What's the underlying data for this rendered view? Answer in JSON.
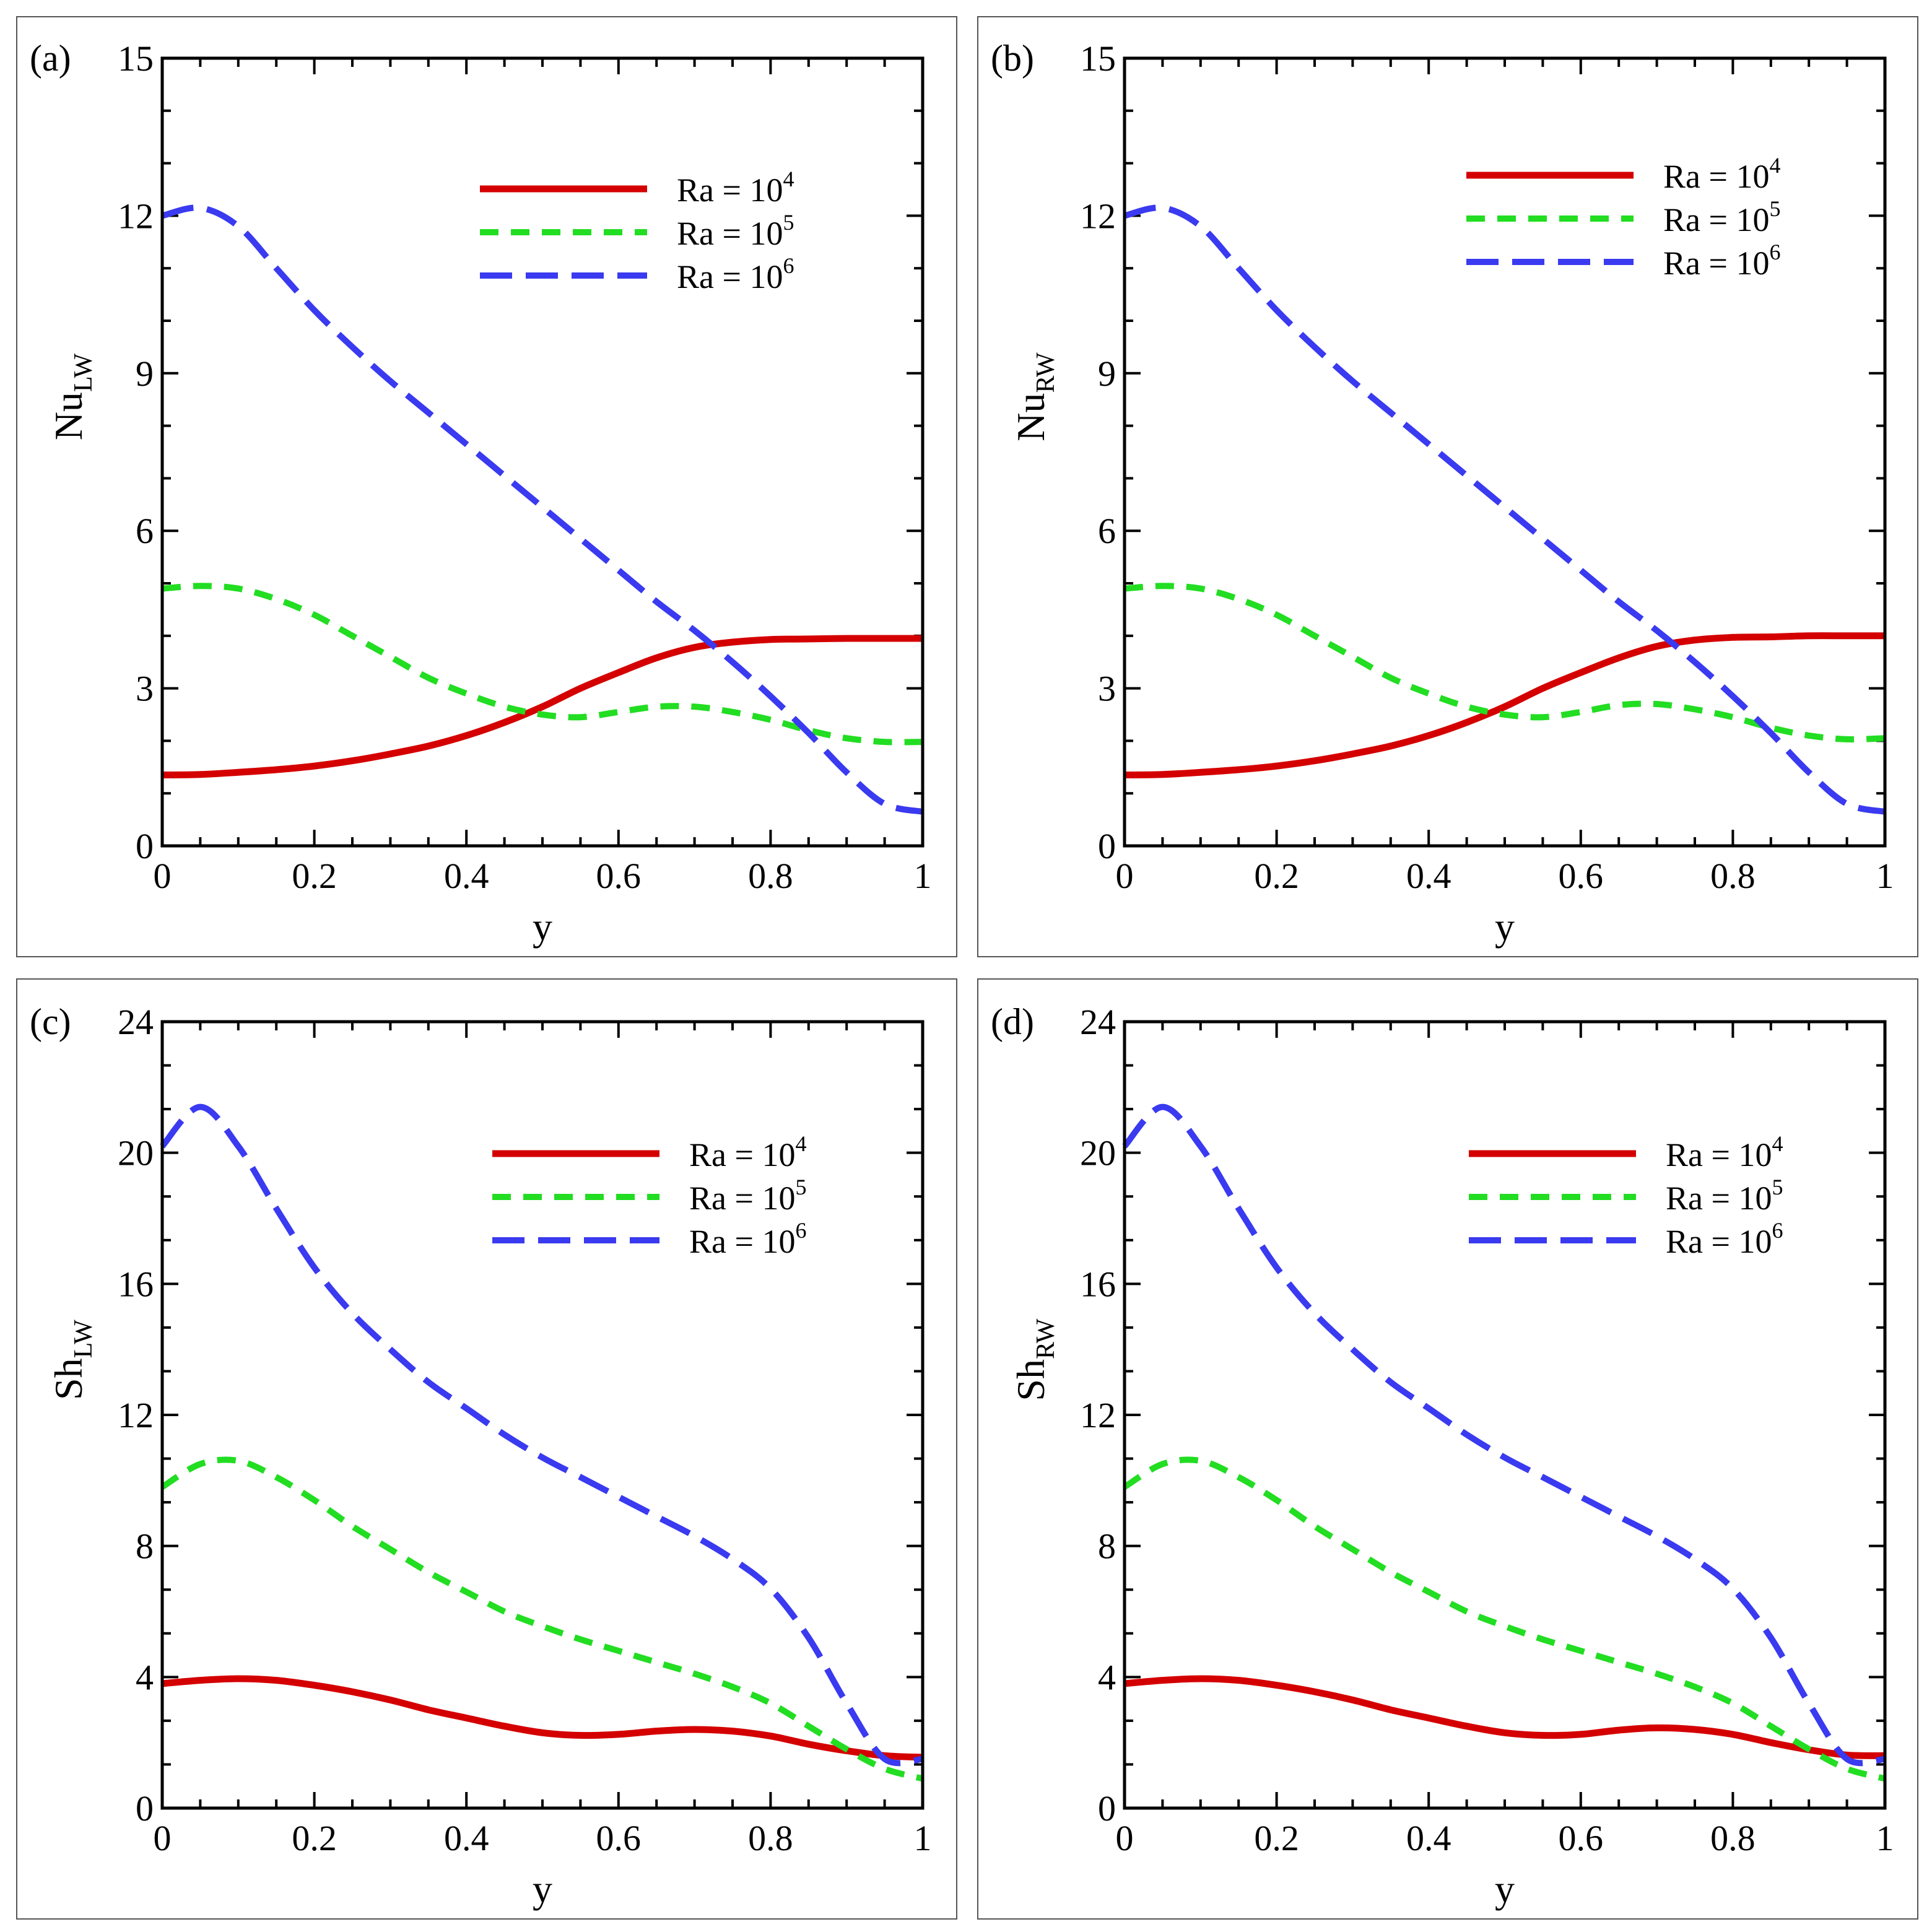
{
  "figure": {
    "panels": [
      {
        "label": "(a)",
        "ylabel_main": "Nu",
        "ylabel_sub": "LW",
        "xlabel": "y",
        "yticks": [
          "0",
          "3",
          "6",
          "9",
          "12",
          "15"
        ],
        "xticks": [
          "0",
          "0.2",
          "0.4",
          "0.6",
          "0.8",
          "1"
        ],
        "legend": [
          {
            "base": "Ra = 10",
            "exp": "4"
          },
          {
            "base": "Ra = 10",
            "exp": "5"
          },
          {
            "base": "Ra = 10",
            "exp": "6"
          }
        ]
      },
      {
        "label": "(b)",
        "ylabel_main": "Nu",
        "ylabel_sub": "RW",
        "xlabel": "y",
        "yticks": [
          "0",
          "3",
          "6",
          "9",
          "12",
          "15"
        ],
        "xticks": [
          "0",
          "0.2",
          "0.4",
          "0.6",
          "0.8",
          "1"
        ],
        "legend": [
          {
            "base": "Ra = 10",
            "exp": "4"
          },
          {
            "base": "Ra = 10",
            "exp": "5"
          },
          {
            "base": "Ra = 10",
            "exp": "6"
          }
        ]
      },
      {
        "label": "(c)",
        "ylabel_main": "Sh",
        "ylabel_sub": "LW",
        "xlabel": "y",
        "yticks": [
          "0",
          "4",
          "8",
          "12",
          "16",
          "20",
          "24"
        ],
        "xticks": [
          "0",
          "0.2",
          "0.4",
          "0.6",
          "0.8",
          "1"
        ],
        "legend": [
          {
            "base": "Ra = 10",
            "exp": "4"
          },
          {
            "base": "Ra = 10",
            "exp": "5"
          },
          {
            "base": "Ra = 10",
            "exp": "6"
          }
        ]
      },
      {
        "label": "(d)",
        "ylabel_main": "Sh",
        "ylabel_sub": "RW",
        "xlabel": "y",
        "yticks": [
          "0",
          "4",
          "8",
          "12",
          "16",
          "20",
          "24"
        ],
        "xticks": [
          "0",
          "0.2",
          "0.4",
          "0.6",
          "0.8",
          "1"
        ],
        "legend": [
          {
            "base": "Ra = 10",
            "exp": "4"
          },
          {
            "base": "Ra = 10",
            "exp": "5"
          },
          {
            "base": "Ra = 10",
            "exp": "6"
          }
        ]
      }
    ]
  },
  "chart_data": [
    {
      "type": "line",
      "panel": "(a)",
      "xlabel": "y",
      "ylabel": "Nu_LW",
      "xlim": [
        0,
        1
      ],
      "ylim": [
        0,
        15
      ],
      "x": [
        0,
        0.05,
        0.1,
        0.15,
        0.2,
        0.25,
        0.3,
        0.35,
        0.4,
        0.45,
        0.5,
        0.55,
        0.6,
        0.65,
        0.7,
        0.75,
        0.8,
        0.85,
        0.9,
        0.95,
        1.0
      ],
      "series": [
        {
          "name": "Ra = 10^4",
          "color": "#d40000",
          "dash": "solid",
          "values": [
            1.35,
            1.36,
            1.4,
            1.45,
            1.52,
            1.62,
            1.75,
            1.9,
            2.1,
            2.35,
            2.65,
            3.0,
            3.3,
            3.58,
            3.78,
            3.88,
            3.93,
            3.94,
            3.95,
            3.95,
            3.95
          ]
        },
        {
          "name": "Ra = 10^5",
          "color": "#22dd22",
          "dash": "short",
          "values": [
            4.9,
            4.95,
            4.9,
            4.7,
            4.4,
            4.0,
            3.6,
            3.2,
            2.9,
            2.65,
            2.5,
            2.45,
            2.55,
            2.65,
            2.65,
            2.55,
            2.4,
            2.2,
            2.05,
            1.98,
            1.98
          ]
        },
        {
          "name": "Ra = 10^6",
          "color": "#3a3af0",
          "dash": "long",
          "values": [
            12.0,
            12.15,
            11.8,
            11.0,
            10.2,
            9.5,
            8.85,
            8.25,
            7.65,
            7.05,
            6.45,
            5.85,
            5.25,
            4.65,
            4.1,
            3.5,
            2.85,
            2.15,
            1.4,
            0.8,
            0.65
          ]
        }
      ],
      "legend_position": "top-right"
    },
    {
      "type": "line",
      "panel": "(b)",
      "xlabel": "y",
      "ylabel": "Nu_RW",
      "xlim": [
        0,
        1
      ],
      "ylim": [
        0,
        15
      ],
      "x": [
        0,
        0.05,
        0.1,
        0.15,
        0.2,
        0.25,
        0.3,
        0.35,
        0.4,
        0.45,
        0.5,
        0.55,
        0.6,
        0.65,
        0.7,
        0.75,
        0.8,
        0.85,
        0.9,
        0.95,
        1.0
      ],
      "series": [
        {
          "name": "Ra = 10^4",
          "color": "#d40000",
          "dash": "solid",
          "values": [
            1.35,
            1.36,
            1.4,
            1.45,
            1.52,
            1.62,
            1.75,
            1.9,
            2.1,
            2.35,
            2.65,
            3.0,
            3.3,
            3.58,
            3.8,
            3.92,
            3.97,
            3.98,
            4.0,
            4.0,
            4.0
          ]
        },
        {
          "name": "Ra = 10^5",
          "color": "#22dd22",
          "dash": "short",
          "values": [
            4.9,
            4.95,
            4.9,
            4.7,
            4.4,
            4.0,
            3.6,
            3.2,
            2.9,
            2.65,
            2.5,
            2.45,
            2.55,
            2.68,
            2.7,
            2.6,
            2.45,
            2.25,
            2.1,
            2.03,
            2.05
          ]
        },
        {
          "name": "Ra = 10^6",
          "color": "#3a3af0",
          "dash": "long",
          "values": [
            12.0,
            12.15,
            11.8,
            11.0,
            10.2,
            9.5,
            8.85,
            8.25,
            7.65,
            7.05,
            6.45,
            5.85,
            5.25,
            4.65,
            4.1,
            3.5,
            2.85,
            2.15,
            1.4,
            0.8,
            0.65
          ]
        }
      ],
      "legend_position": "top-right"
    },
    {
      "type": "line",
      "panel": "(c)",
      "xlabel": "y",
      "ylabel": "Sh_LW",
      "xlim": [
        0,
        1
      ],
      "ylim": [
        0,
        24
      ],
      "x": [
        0,
        0.05,
        0.1,
        0.15,
        0.2,
        0.25,
        0.3,
        0.35,
        0.4,
        0.45,
        0.5,
        0.55,
        0.6,
        0.65,
        0.7,
        0.75,
        0.8,
        0.85,
        0.9,
        0.95,
        1.0
      ],
      "series": [
        {
          "name": "Ra = 10^4",
          "color": "#d40000",
          "dash": "solid",
          "values": [
            3.8,
            3.9,
            3.95,
            3.9,
            3.75,
            3.55,
            3.3,
            3.0,
            2.75,
            2.5,
            2.3,
            2.22,
            2.25,
            2.35,
            2.4,
            2.35,
            2.2,
            1.95,
            1.75,
            1.6,
            1.55
          ]
        },
        {
          "name": "Ra = 10^5",
          "color": "#22dd22",
          "dash": "short",
          "values": [
            9.8,
            10.5,
            10.6,
            10.1,
            9.4,
            8.6,
            7.9,
            7.2,
            6.6,
            6.0,
            5.55,
            5.15,
            4.8,
            4.45,
            4.1,
            3.7,
            3.2,
            2.5,
            1.8,
            1.2,
            0.9
          ]
        },
        {
          "name": "Ra = 10^6",
          "color": "#3a3af0",
          "dash": "long",
          "values": [
            20.2,
            21.4,
            20.2,
            18.3,
            16.5,
            15.1,
            14.0,
            13.0,
            12.2,
            11.4,
            10.7,
            10.1,
            9.5,
            8.9,
            8.3,
            7.6,
            6.7,
            5.2,
            3.2,
            1.5,
            1.5
          ]
        }
      ],
      "legend_position": "top-right"
    },
    {
      "type": "line",
      "panel": "(d)",
      "xlabel": "y",
      "ylabel": "Sh_RW",
      "xlim": [
        0,
        1
      ],
      "ylim": [
        0,
        24
      ],
      "x": [
        0,
        0.05,
        0.1,
        0.15,
        0.2,
        0.25,
        0.3,
        0.35,
        0.4,
        0.45,
        0.5,
        0.55,
        0.6,
        0.65,
        0.7,
        0.75,
        0.8,
        0.85,
        0.9,
        0.95,
        1.0
      ],
      "series": [
        {
          "name": "Ra = 10^4",
          "color": "#d40000",
          "dash": "solid",
          "values": [
            3.8,
            3.9,
            3.95,
            3.9,
            3.75,
            3.55,
            3.3,
            3.0,
            2.75,
            2.5,
            2.3,
            2.22,
            2.25,
            2.38,
            2.45,
            2.4,
            2.25,
            2.0,
            1.78,
            1.62,
            1.6
          ]
        },
        {
          "name": "Ra = 10^5",
          "color": "#22dd22",
          "dash": "short",
          "values": [
            9.8,
            10.5,
            10.6,
            10.1,
            9.4,
            8.6,
            7.9,
            7.2,
            6.6,
            6.0,
            5.55,
            5.15,
            4.8,
            4.45,
            4.1,
            3.7,
            3.2,
            2.5,
            1.8,
            1.2,
            0.9
          ]
        },
        {
          "name": "Ra = 10^6",
          "color": "#3a3af0",
          "dash": "long",
          "values": [
            20.2,
            21.4,
            20.2,
            18.3,
            16.5,
            15.1,
            14.0,
            13.0,
            12.2,
            11.4,
            10.7,
            10.1,
            9.5,
            8.9,
            8.3,
            7.6,
            6.7,
            5.2,
            3.2,
            1.5,
            1.5
          ]
        }
      ],
      "legend_position": "top-right"
    }
  ]
}
